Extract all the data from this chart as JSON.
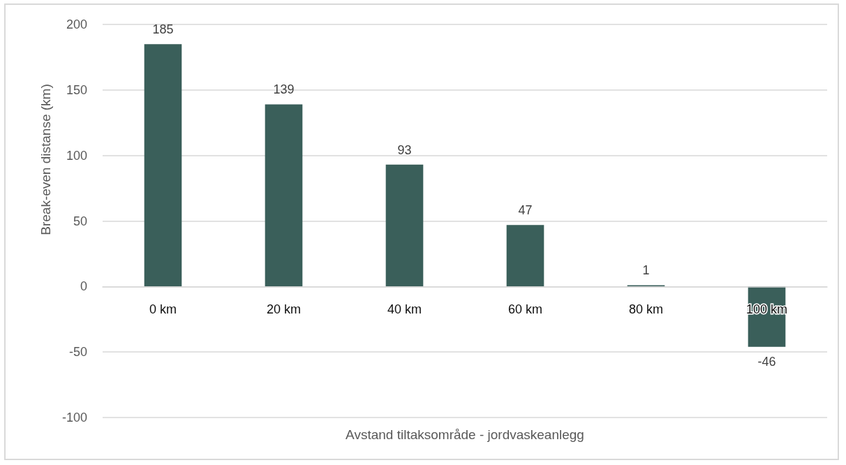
{
  "chart_data": {
    "type": "bar",
    "xlabel": "Avstand tiltaksområde - jordvaskeanlegg",
    "ylabel": "Break-even distanse (km)",
    "categories": [
      "0 km",
      "20 km",
      "40 km",
      "60 km",
      "80 km",
      "100 km"
    ],
    "values": [
      185,
      139,
      93,
      47,
      1,
      -46
    ],
    "color": "#3a5f5a",
    "ylim": [
      -100,
      200
    ],
    "yticks": [
      -100,
      -50,
      0,
      50,
      100,
      150,
      200
    ],
    "grid": "y",
    "data_labels": true
  }
}
